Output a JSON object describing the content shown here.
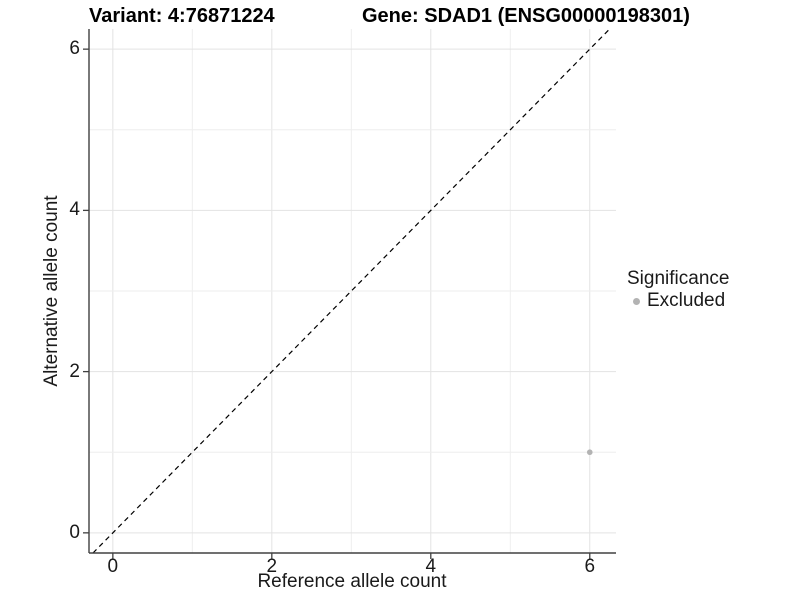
{
  "titles": {
    "variant": "Variant: 4:76871224",
    "gene": "Gene: SDAD1 (ENSG00000198301)"
  },
  "chart_data": {
    "type": "scatter",
    "title": "Variant: 4:76871224 — Gene: SDAD1 (ENSG00000198301)",
    "xlabel": "Reference allele count",
    "ylabel": "Alternative allele count",
    "xlim": [
      -0.3,
      6.33
    ],
    "ylim": [
      -0.25,
      6.25
    ],
    "xticks": [
      0,
      2,
      4,
      6
    ],
    "yticks": [
      0,
      2,
      4,
      6
    ],
    "xtick_labels": [
      "0",
      "2",
      "4",
      "6"
    ],
    "ytick_labels": [
      "0",
      "2",
      "4",
      "6"
    ],
    "grid_x": [
      0,
      1,
      2,
      3,
      4,
      5,
      6
    ],
    "grid_y": [
      0,
      1,
      2,
      3,
      4,
      5,
      6
    ],
    "grid": "on",
    "points": [
      {
        "x": 6,
        "y": 1,
        "series": "Excluded"
      }
    ],
    "reference_line": {
      "style": "dashed",
      "slope": 1,
      "intercept": 0,
      "meaning": "y = x identity line"
    },
    "legend": {
      "title": "Significance",
      "position": "right",
      "items": [
        {
          "label": "Excluded",
          "color": "#b3b3b3"
        }
      ]
    }
  },
  "colors": {
    "background": "#ffffff",
    "grid_major": "#e3e3e3",
    "grid_minor": "#eeeeee",
    "axis_line": "#404040",
    "text": "#1a1a1a",
    "title": "#000000",
    "point": "#b3b3b3",
    "reference_line": "#000000"
  }
}
